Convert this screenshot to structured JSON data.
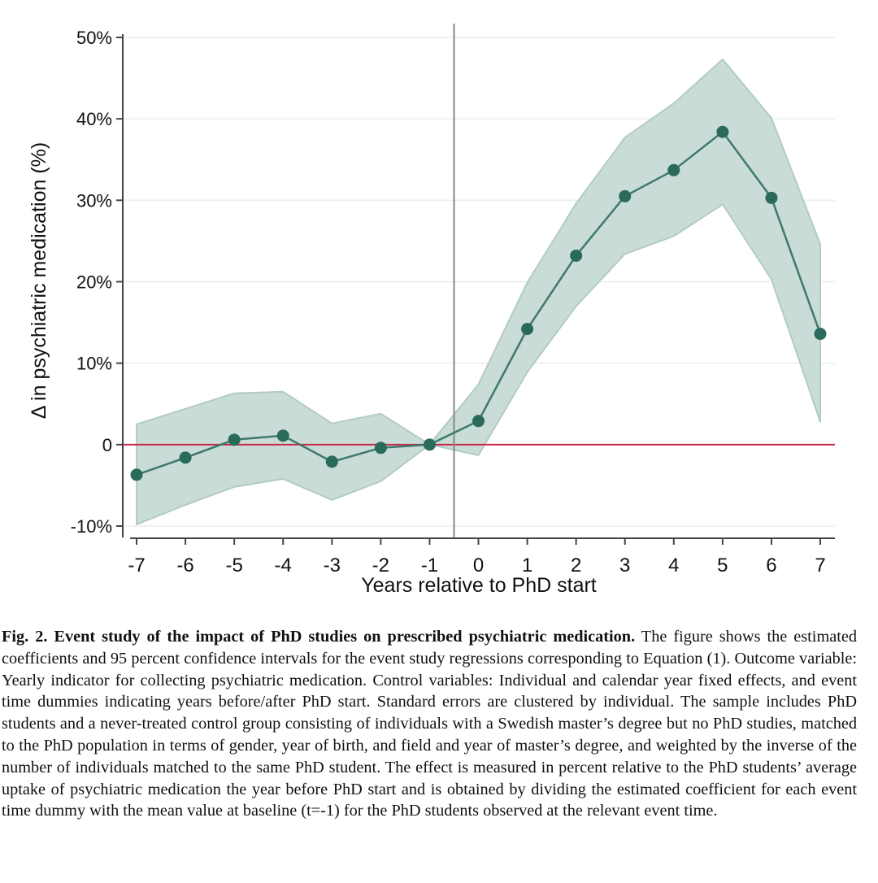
{
  "chart_data": {
    "type": "line",
    "title": "",
    "xlabel": "Years relative to PhD start",
    "ylabel": "Δ in psychiatric medication (%)",
    "x": [
      -7,
      -6,
      -5,
      -4,
      -3,
      -2,
      -1,
      0,
      1,
      2,
      3,
      4,
      5,
      6,
      7
    ],
    "series": [
      {
        "values": [
          -3.7,
          -1.6,
          0.6,
          1.1,
          -2.1,
          -0.4,
          0.0,
          2.9,
          14.2,
          23.2,
          30.5,
          33.7,
          38.4,
          30.3,
          13.6
        ],
        "ci_lower": [
          -9.8,
          -7.4,
          -5.2,
          -4.2,
          -6.8,
          -4.5,
          0.0,
          -1.3,
          8.9,
          17.0,
          23.4,
          25.6,
          29.5,
          20.3,
          2.8
        ],
        "ci_upper": [
          2.5,
          4.4,
          6.3,
          6.5,
          2.6,
          3.8,
          0.0,
          7.4,
          19.9,
          29.6,
          37.7,
          41.9,
          47.3,
          40.1,
          24.6
        ]
      }
    ],
    "yticks": [
      -10,
      0,
      10,
      20,
      30,
      40,
      50
    ],
    "ytick_labels": [
      "-10%",
      "0",
      "10%",
      "20%",
      "30%",
      "40%",
      "50%"
    ],
    "xticks": [
      -7,
      -6,
      -5,
      -4,
      -3,
      -2,
      -1,
      0,
      1,
      2,
      3,
      4,
      5,
      6,
      7
    ],
    "xtick_labels": [
      "-7",
      "-6",
      "-5",
      "-4",
      "-3",
      "-2",
      "-1",
      "0",
      "1",
      "2",
      "3",
      "4",
      "5",
      "6",
      "7"
    ],
    "xlim": [
      -7,
      7
    ],
    "ylim": [
      -10,
      50
    ],
    "reference_hline": 0,
    "reference_vline": -0.5,
    "grid": "horizontal",
    "colors": {
      "line": "#3d7a6a",
      "marker": "#2a6a5a",
      "ci_band": "#c9dcd7",
      "ci_edge": "#b3cbc5",
      "zero_line": "#c8284a",
      "vline": "#888888",
      "grid": "#e9eeee",
      "axis": "#444444"
    }
  },
  "caption": {
    "fig_title": "Fig. 2. Event study of the impact of PhD studies on prescribed psychiatric medication.",
    "text": " The figure shows the estimated coefficients and 95 percent confidence intervals for the event study regressions corresponding to Equation (1). Outcome variable: Yearly indicator for collecting psychiatric medication. Control variables: Individual and calendar year fixed effects, and event time dummies indicating years before/after PhD start. Standard errors are clustered by individual. The sample includes PhD students and a never-treated control group consisting of individuals with a Swedish master’s degree but no PhD studies, matched to the PhD population in terms of gender, year of birth, and field and year of master’s degree, and weighted by the inverse of the number of individuals matched to the same PhD student. The effect is measured in percent relative to the PhD students’ average uptake of psychiatric medication the year before PhD start and is obtained by dividing the estimated coefficient for each event time dummy with the mean value at baseline (t=-1) for the PhD students observed at the relevant event time."
  }
}
